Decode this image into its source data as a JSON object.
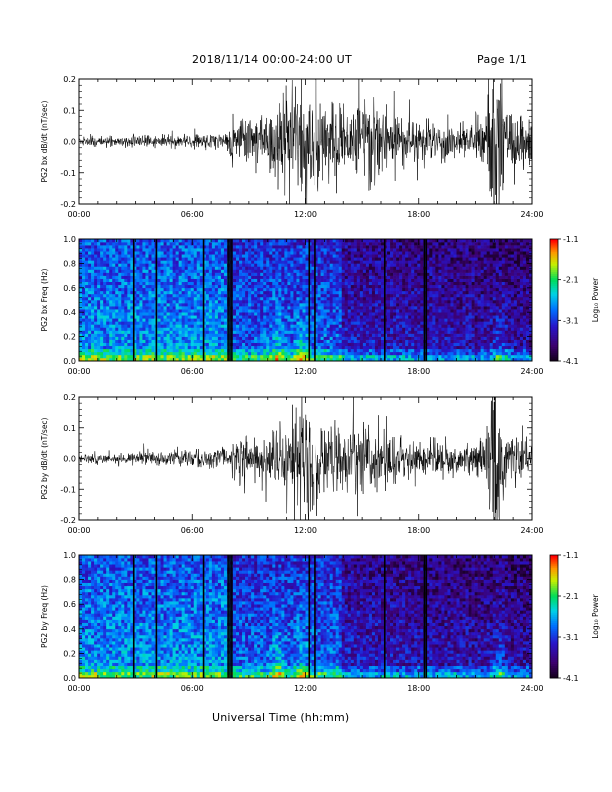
{
  "header": {
    "title": "2018/11/14  00:00-24:00 UT",
    "page": "Page 1/1"
  },
  "xlabel": "Universal Time (hh:mm)",
  "colorbar": {
    "label": "Log₁₀ Power",
    "ticks": [
      "-1.1",
      "-2.1",
      "-3.1",
      "-4.1"
    ]
  },
  "colors": {
    "waveform": "#000000",
    "background": "#ffffff"
  },
  "chart_data": [
    {
      "type": "line",
      "ylabel": "PG2 bx dB/dt (nT/sec)",
      "xlim": [
        0,
        24
      ],
      "ylim": [
        -0.2,
        0.2
      ],
      "xticks": [
        "00:00",
        "06:00",
        "12:00",
        "18:00",
        "24:00"
      ],
      "yticks": [
        "-0.2",
        "-0.1",
        "0.0",
        "0.1",
        "0.2"
      ],
      "envelope_hours": [
        0,
        2,
        4,
        6,
        7.9,
        8.1,
        9,
        10,
        10.5,
        11,
        11.5,
        12,
        12.5,
        13,
        14,
        14.5,
        15,
        15.5,
        16,
        17,
        18,
        19,
        20,
        21,
        21.5,
        21.9,
        22.3,
        22.6,
        23,
        23.5,
        24
      ],
      "envelope_amplitude": [
        0.015,
        0.02,
        0.02,
        0.025,
        0.03,
        0.07,
        0.08,
        0.1,
        0.13,
        0.16,
        0.2,
        0.22,
        0.2,
        0.15,
        0.12,
        0.12,
        0.14,
        0.18,
        0.12,
        0.09,
        0.08,
        0.07,
        0.06,
        0.07,
        0.08,
        0.3,
        0.3,
        0.08,
        0.12,
        0.1,
        0.06
      ]
    },
    {
      "type": "heatmap",
      "ylabel": "PG2 bx Freq (Hz)",
      "xlim": [
        0,
        24
      ],
      "ylim": [
        0,
        1.0
      ],
      "xticks": [
        "00:00",
        "06:00",
        "12:00",
        "18:00",
        "24:00"
      ],
      "yticks": [
        "0.0",
        "0.2",
        "0.4",
        "0.6",
        "0.8",
        "1.0"
      ],
      "zlim": [
        -4.1,
        -1.1
      ],
      "data_gaps_hours": [
        2.9,
        4.1,
        6.6,
        7.9,
        8.0,
        8.1,
        12.2,
        12.5,
        16.2,
        18.3,
        18.4
      ],
      "enhancement_hours": [
        10.5,
        11.8,
        22.3
      ]
    },
    {
      "type": "line",
      "ylabel": "PG2 by dB/dt (nT/sec)",
      "xlim": [
        0,
        24
      ],
      "ylim": [
        -0.2,
        0.2
      ],
      "xticks": [
        "00:00",
        "06:00",
        "12:00",
        "18:00",
        "24:00"
      ],
      "yticks": [
        "-0.2",
        "-0.1",
        "0.0",
        "0.1",
        "0.2"
      ],
      "envelope_hours": [
        0,
        2,
        4,
        6,
        7.9,
        8.1,
        9,
        10,
        10.5,
        11,
        11.5,
        12,
        12.5,
        13,
        14,
        14.5,
        15,
        15.5,
        16,
        17,
        18,
        19,
        20,
        21,
        21.5,
        21.9,
        22.3,
        22.6,
        23,
        23.5,
        24
      ],
      "envelope_amplitude": [
        0.015,
        0.02,
        0.025,
        0.03,
        0.03,
        0.06,
        0.07,
        0.09,
        0.12,
        0.17,
        0.2,
        0.22,
        0.2,
        0.16,
        0.12,
        0.12,
        0.14,
        0.15,
        0.1,
        0.08,
        0.07,
        0.06,
        0.05,
        0.06,
        0.08,
        0.3,
        0.3,
        0.08,
        0.1,
        0.08,
        0.05
      ]
    },
    {
      "type": "heatmap",
      "ylabel": "PG2 by Freq (Hz)",
      "xlim": [
        0,
        24
      ],
      "ylim": [
        0,
        1.0
      ],
      "xticks": [
        "00:00",
        "06:00",
        "12:00",
        "18:00",
        "24:00"
      ],
      "yticks": [
        "0.0",
        "0.2",
        "0.4",
        "0.6",
        "0.8",
        "1.0"
      ],
      "zlim": [
        -4.1,
        -1.1
      ],
      "data_gaps_hours": [
        2.9,
        4.1,
        6.6,
        7.9,
        8.0,
        8.1,
        12.2,
        12.5,
        16.2,
        18.3,
        18.4
      ],
      "enhancement_hours": [
        10.5,
        11.8,
        22.3
      ]
    }
  ]
}
